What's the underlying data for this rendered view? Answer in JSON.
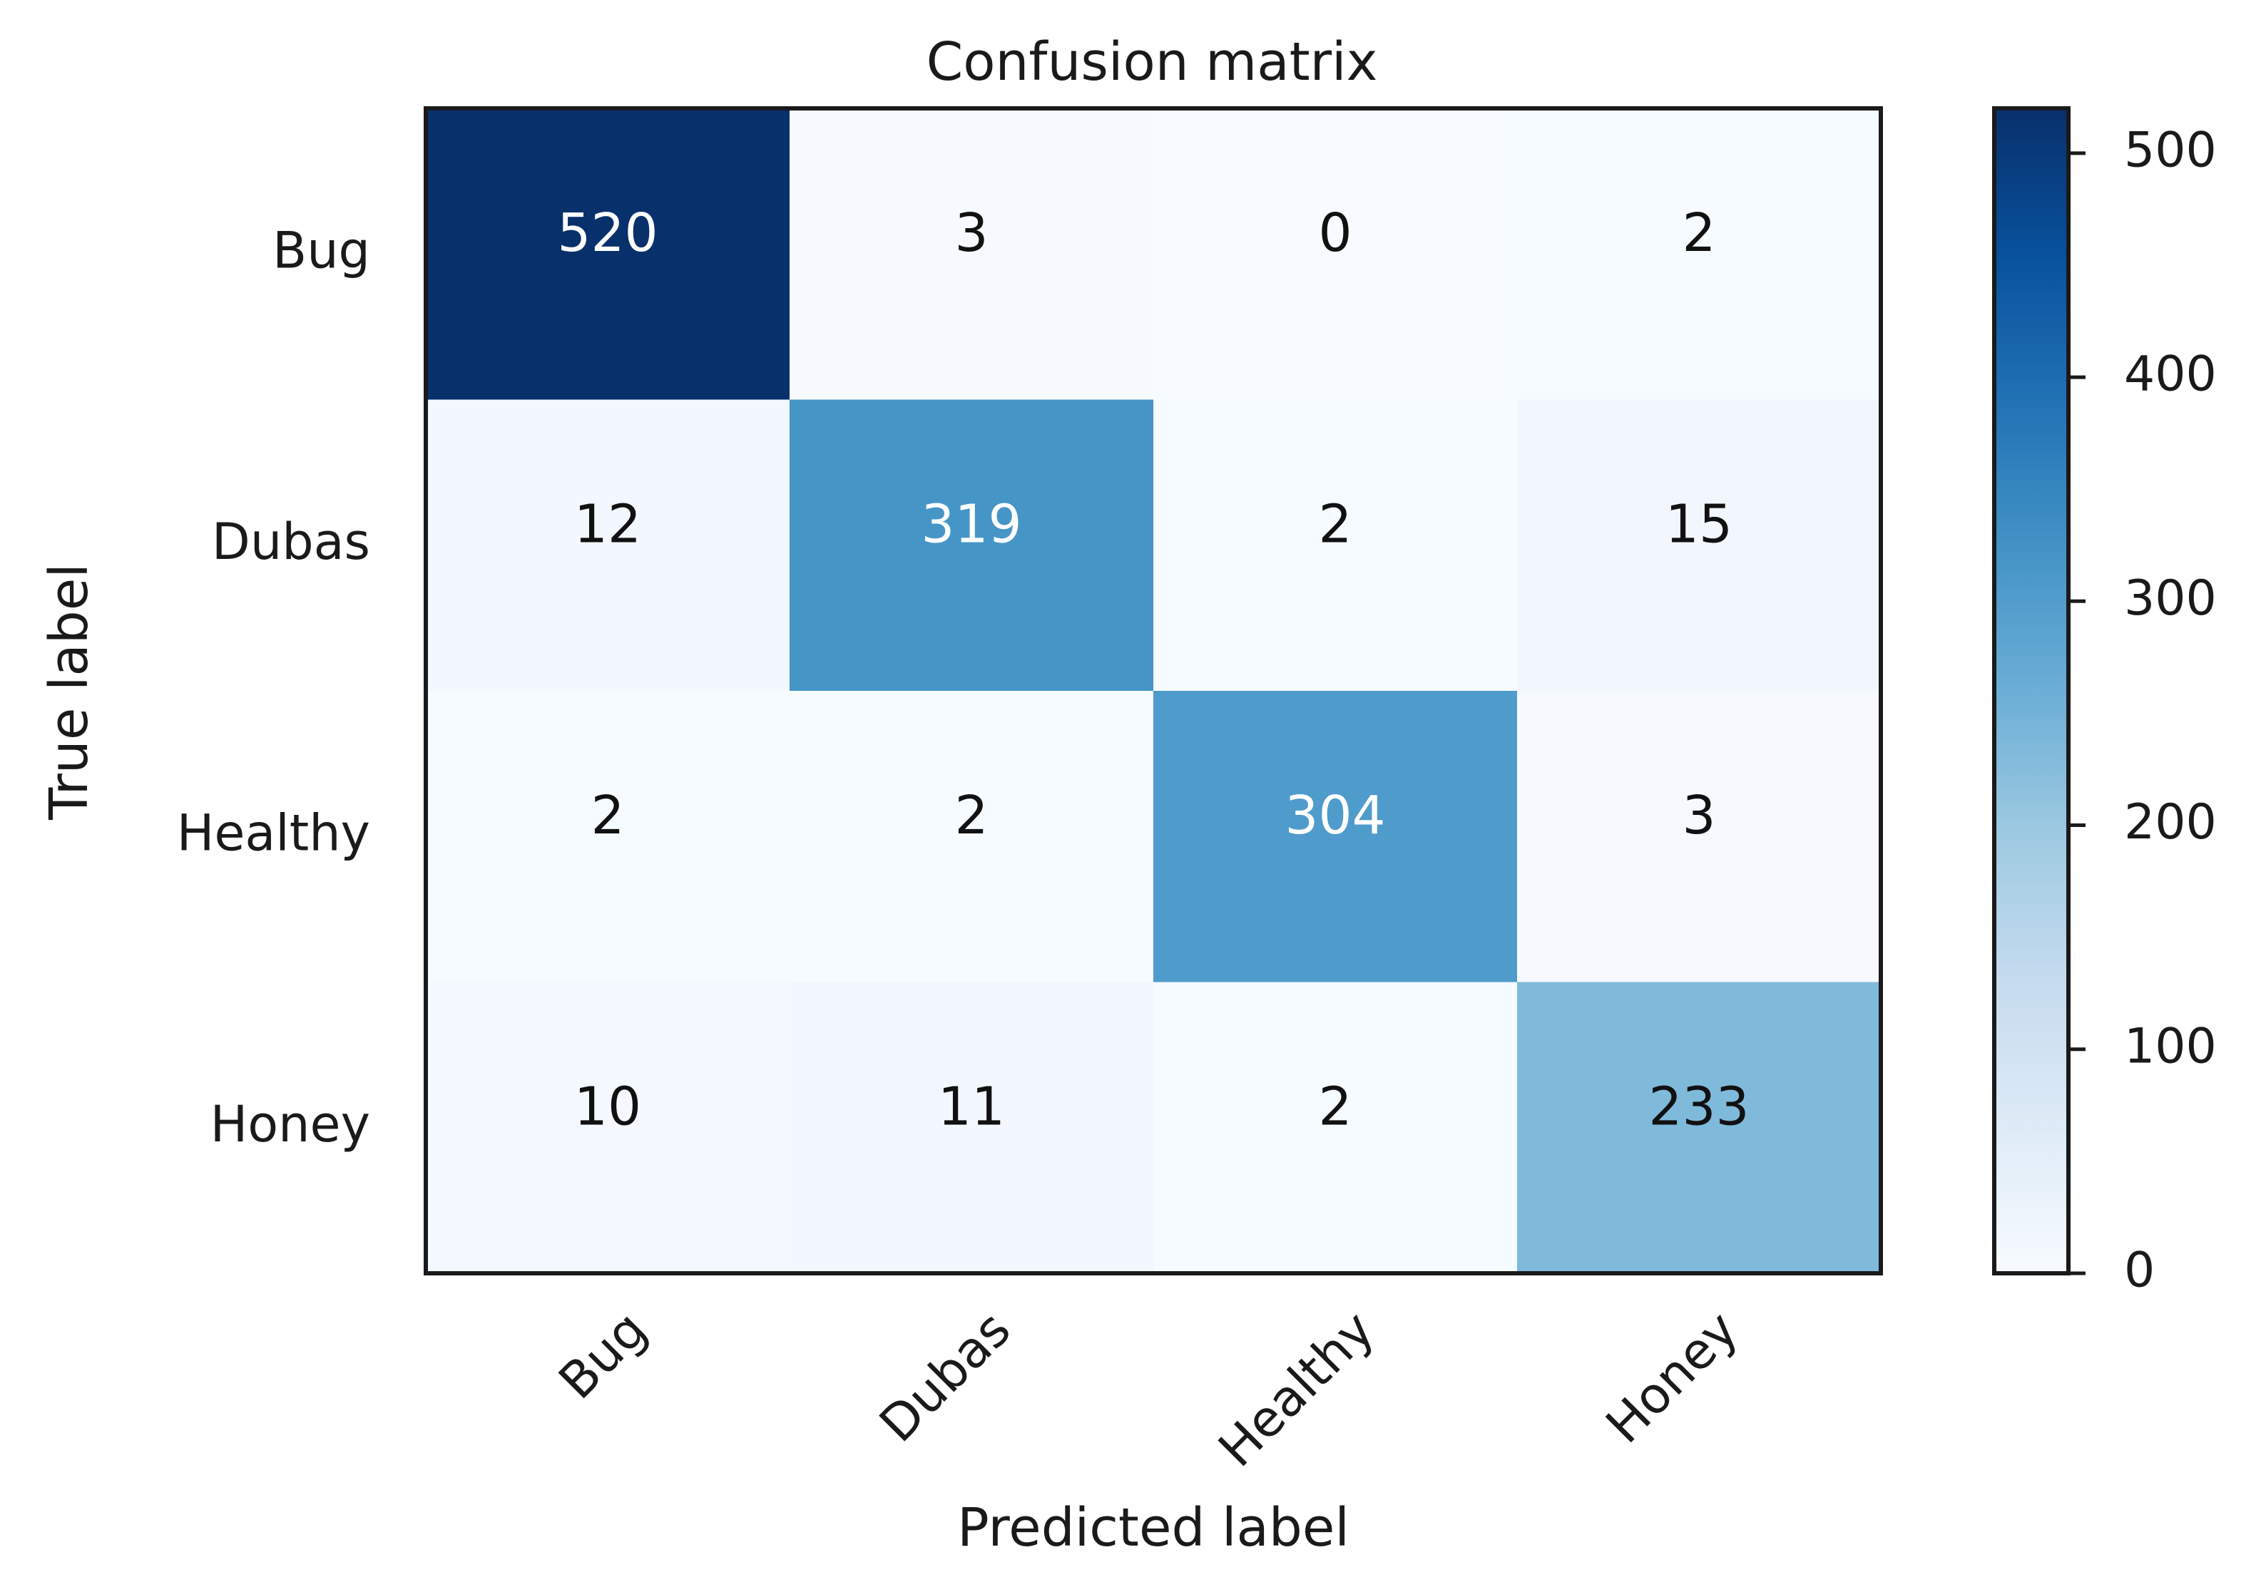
{
  "chart_data": {
    "type": "heatmap",
    "title": "Confusion matrix",
    "xlabel": "Predicted label",
    "ylabel": "True label",
    "x_categories": [
      "Bug",
      "Dubas",
      "Healthy",
      "Honey"
    ],
    "y_categories": [
      "Bug",
      "Dubas",
      "Healthy",
      "Honey"
    ],
    "values": [
      [
        520,
        3,
        0,
        2
      ],
      [
        12,
        319,
        2,
        15
      ],
      [
        2,
        2,
        304,
        3
      ],
      [
        10,
        11,
        2,
        233
      ]
    ],
    "colormap": "Blues",
    "colorbar": {
      "range": [
        0,
        520
      ],
      "ticks": [
        0,
        100,
        200,
        300,
        400,
        500
      ]
    },
    "grid": false,
    "legend": "colorbar-right"
  }
}
